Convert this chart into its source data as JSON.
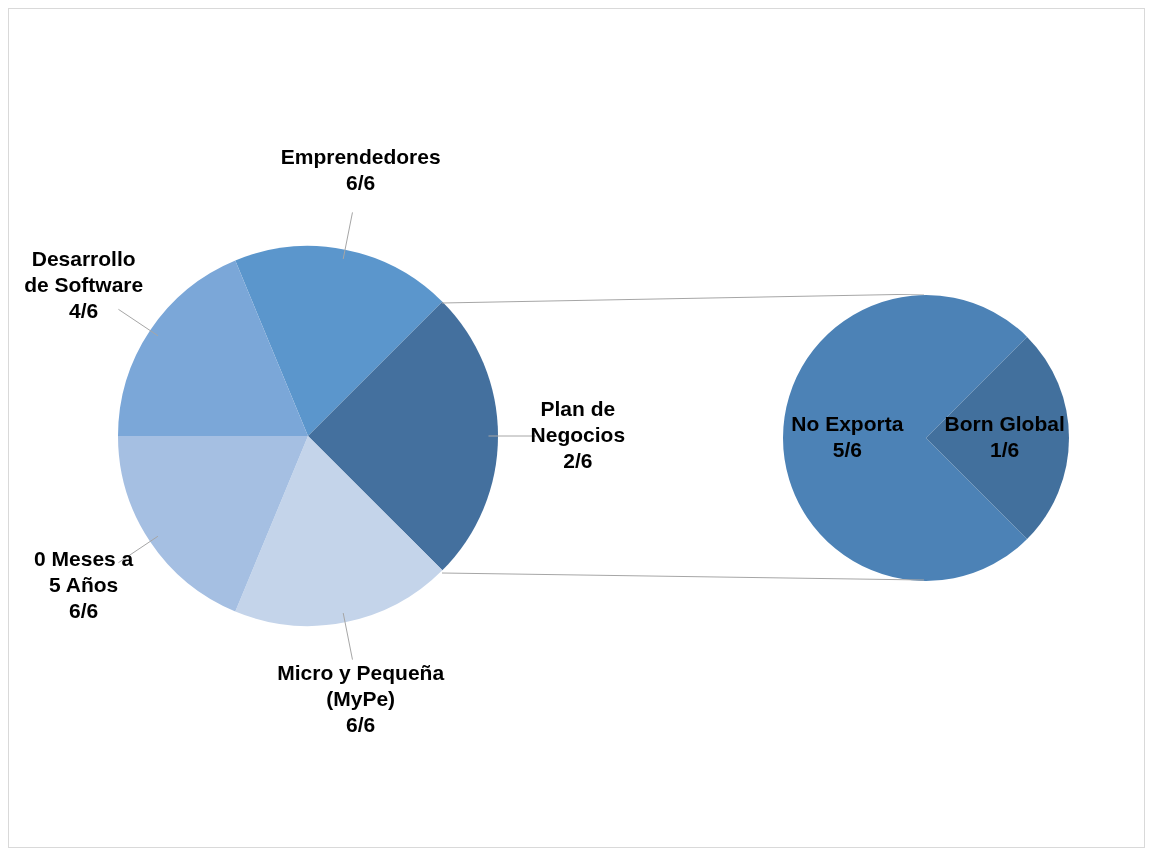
{
  "chart_data": [
    {
      "type": "pie",
      "categories": [
        "Emprendedores\n6/6",
        "Plan de\nNegocios\n2/6",
        "Micro y Pequeña\n(MyPe)\n6/6",
        "0 Meses a\n5 Años\n6/6",
        "Desarrollo\nde Software\n4/6"
      ],
      "values": [
        18.75,
        25,
        18.75,
        18.75,
        18.75
      ],
      "colors": [
        "#5b96cc",
        "#44709e",
        "#c4d4ea",
        "#a5bfe2",
        "#7ba7d8"
      ],
      "legend": false
    },
    {
      "type": "pie",
      "categories": [
        "No Exporta\n5/6",
        "Born Global\n1/6"
      ],
      "values": [
        75,
        25
      ],
      "colors": [
        "#4c82b6",
        "#42709d"
      ],
      "legend": false
    }
  ]
}
